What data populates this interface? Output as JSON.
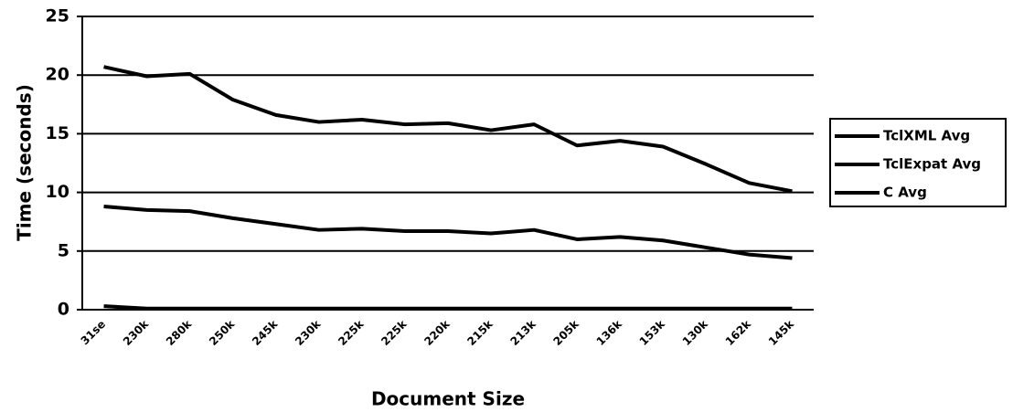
{
  "chart_data": {
    "type": "line",
    "x_label": "Document Size",
    "y_label": "Time (seconds)",
    "categories": [
      "31se",
      "230k",
      "280k",
      "250k",
      "245k",
      "230k",
      "225k",
      "225k",
      "220k",
      "215k",
      "213k",
      "205k",
      "136k",
      "153k",
      "130k",
      "162k",
      "145k"
    ],
    "series": [
      {
        "name": "TclXML Avg",
        "color": "#000000",
        "values": [
          20.7,
          19.9,
          20.1,
          17.9,
          16.6,
          16.0,
          16.2,
          15.8,
          15.9,
          15.3,
          15.8,
          14.0,
          14.4,
          13.9,
          12.4,
          10.8,
          10.1
        ]
      },
      {
        "name": "TclExpat Avg",
        "color": "#000000",
        "values": [
          8.8,
          8.5,
          8.4,
          7.8,
          7.3,
          6.8,
          6.9,
          6.7,
          6.7,
          6.5,
          6.8,
          6.0,
          6.2,
          5.9,
          5.3,
          4.7,
          4.4
        ]
      },
      {
        "name": "C Avg",
        "color": "#000000",
        "values": [
          0.3,
          0.1,
          0.1,
          0.1,
          0.1,
          0.1,
          0.1,
          0.1,
          0.1,
          0.1,
          0.1,
          0.1,
          0.1,
          0.1,
          0.1,
          0.1,
          0.1
        ]
      }
    ],
    "ylim": [
      0,
      25
    ],
    "yticks": [
      0,
      5,
      10,
      15,
      20,
      25
    ],
    "grid": true
  }
}
